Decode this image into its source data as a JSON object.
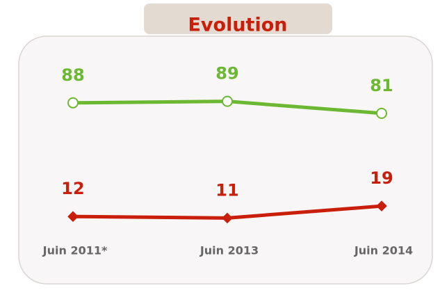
{
  "chart_data": {
    "type": "line",
    "title": "Evolution",
    "categories": [
      "Juin 2011*",
      "Juin 2013",
      "Juin 2014"
    ],
    "series": [
      {
        "color": "#6cb833",
        "values": [
          88,
          89,
          81
        ]
      },
      {
        "color": "#c81e0a",
        "values": [
          12,
          11,
          19
        ]
      }
    ]
  }
}
